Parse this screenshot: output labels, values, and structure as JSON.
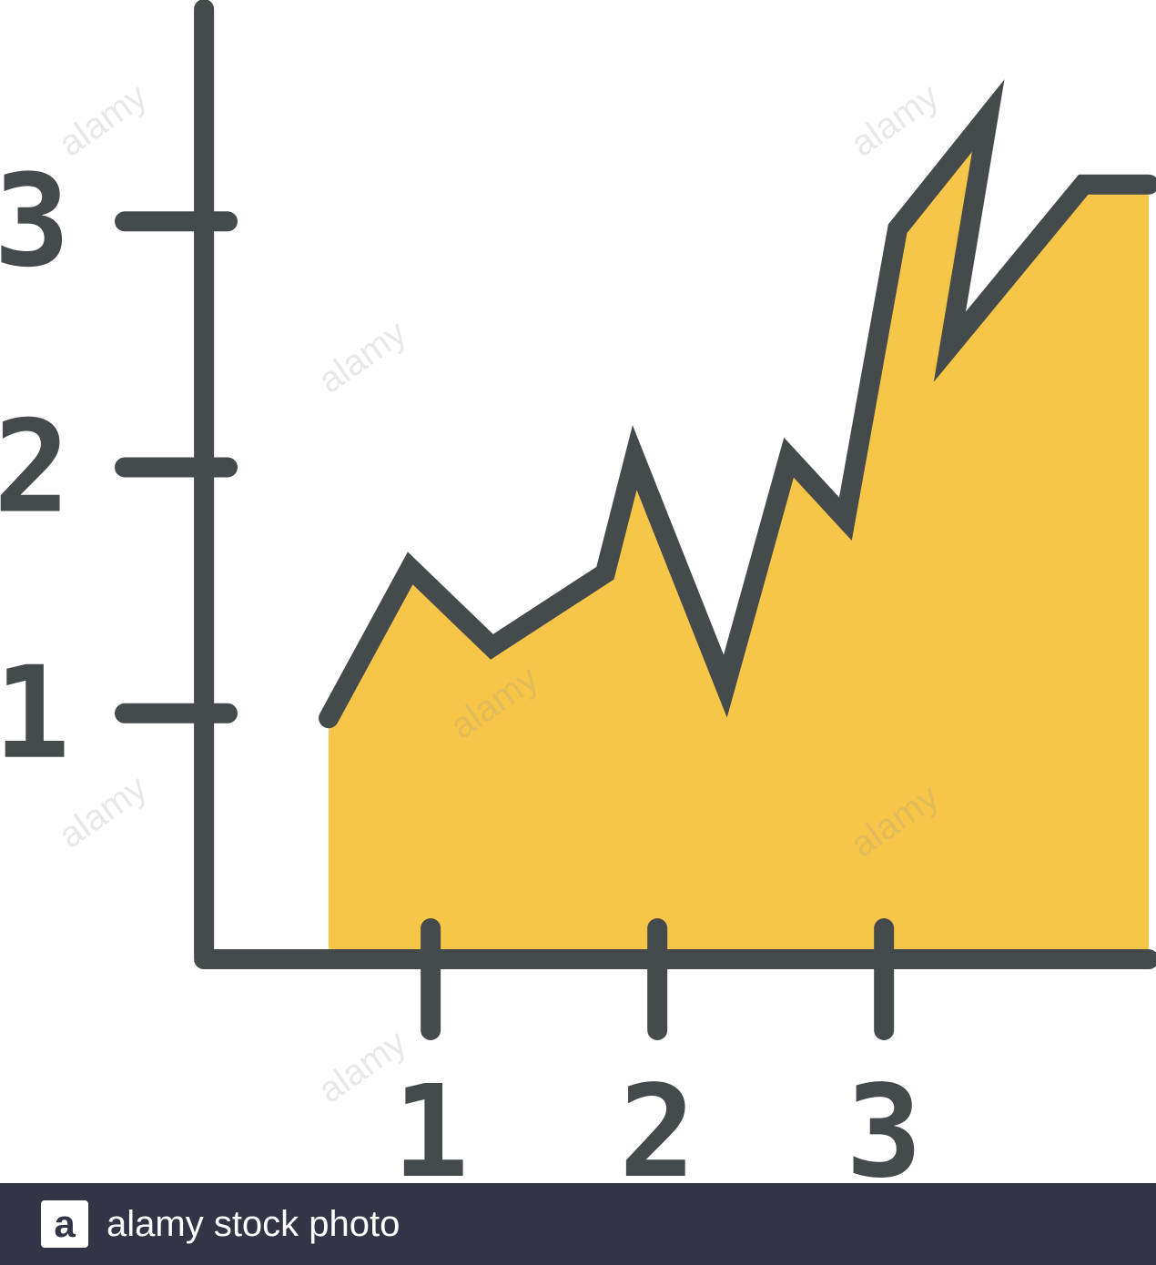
{
  "chart_data": {
    "type": "area",
    "x": [
      0.55,
      0.91,
      1.27,
      1.77,
      1.9,
      2.3,
      2.58,
      2.83,
      3.06,
      3.46,
      3.29,
      3.88
    ],
    "y": [
      0.98,
      1.59,
      1.27,
      1.57,
      2.04,
      1.11,
      2.04,
      1.79,
      2.97,
      3.43,
      2.49,
      3.15
    ],
    "x_ticks": [
      1,
      2,
      3
    ],
    "x_tick_labels": [
      "1",
      "2",
      "3"
    ],
    "y_ticks": [
      1,
      2,
      3
    ],
    "y_tick_labels": [
      "1",
      "2",
      "3"
    ],
    "xlim": [
      -0.9,
      4.2
    ],
    "ylim": [
      -0.91,
      3.9
    ],
    "grid": false,
    "colors": {
      "fill": "#f7c648",
      "line": "#454b4d",
      "axis": "#454b4d"
    }
  },
  "footer": {
    "logo_letter": "a",
    "text": "alamy stock photo"
  },
  "watermark_text": "alamy"
}
